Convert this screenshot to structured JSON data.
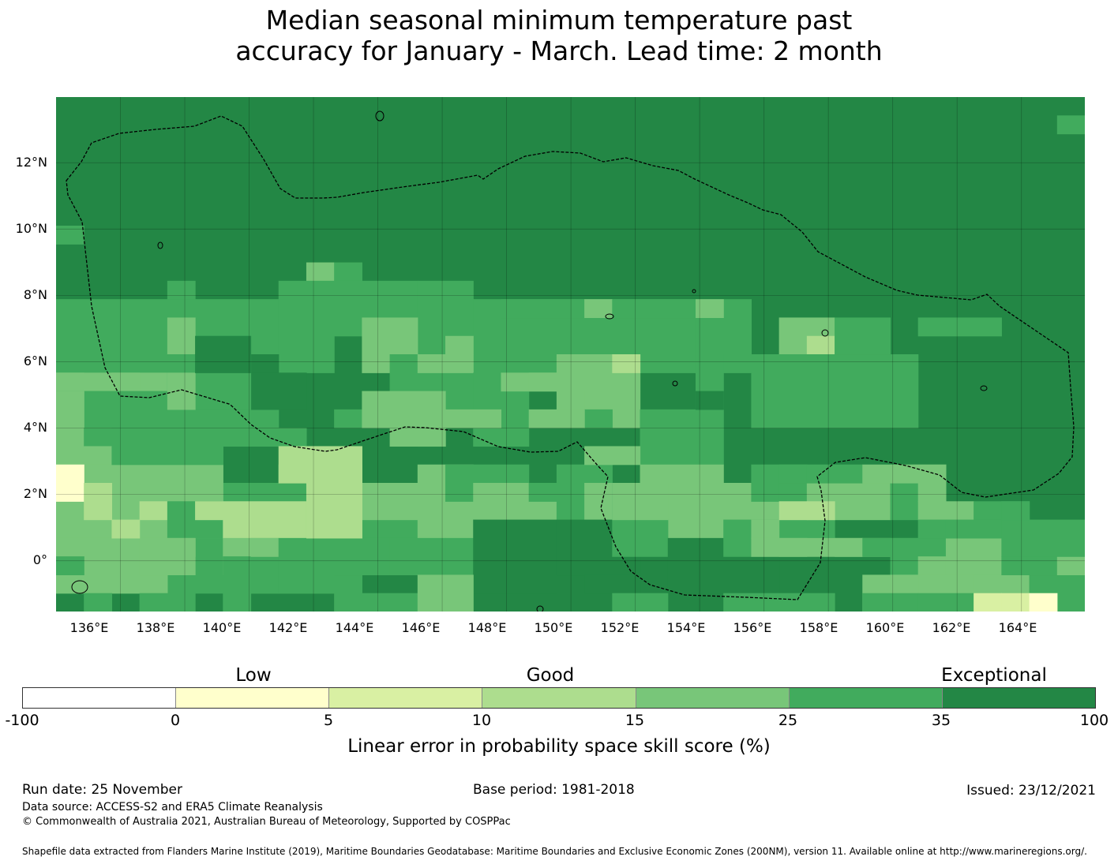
{
  "title_line1": "Median seasonal minimum temperature past",
  "title_line2": "accuracy for January - March. Lead time: 2 month",
  "map": {
    "lat_labels": [
      "12°N",
      "10°N",
      "8°N",
      "6°N",
      "4°N",
      "2°N",
      "0°"
    ],
    "lon_labels": [
      "136°E",
      "138°E",
      "140°E",
      "142°E",
      "144°E",
      "146°E",
      "148°E",
      "150°E",
      "152°E",
      "154°E",
      "156°E",
      "158°E",
      "160°E",
      "162°E",
      "164°E"
    ],
    "extent": {
      "lon_min": 134.0,
      "lon_max": 165.97,
      "lat_min": -1.53,
      "lat_max": 13.98
    },
    "palette": [
      "#ffffcc",
      "#d9f0a3",
      "#addd8e",
      "#78c679",
      "#41ab5d",
      "#238745"
    ]
  },
  "legend": {
    "categories": [
      "Low",
      "Good",
      "Exceptional"
    ],
    "colors": [
      "#ffffff",
      "#ffffcc",
      "#d9f0a3",
      "#addd8e",
      "#78c679",
      "#41ab5d",
      "#238745"
    ],
    "ticks": [
      "-100",
      "0",
      "5",
      "10",
      "15",
      "25",
      "35",
      "100"
    ],
    "label": "Linear error in probability space skill score (%)"
  },
  "footer": {
    "run_date": "Run date: 25 November",
    "base_period": "Base period: 1981-2018",
    "issued": "Issued: 23/12/2021",
    "data_source": "Data source: ACCESS-S2 and ERA5 Climate Reanalysis",
    "copyright": "© Commonwealth of Australia 2021, Australian Bureau of Meteorology, Supported by COSPPac",
    "shapefile": "Shapefile data extracted from Flanders Marine Institute (2019), Maritime Boundaries Geodatabase: Maritime Boundaries and Exclusive Economic Zones (200NM), version 11. Available online at http://www.marineregions.org/."
  }
}
